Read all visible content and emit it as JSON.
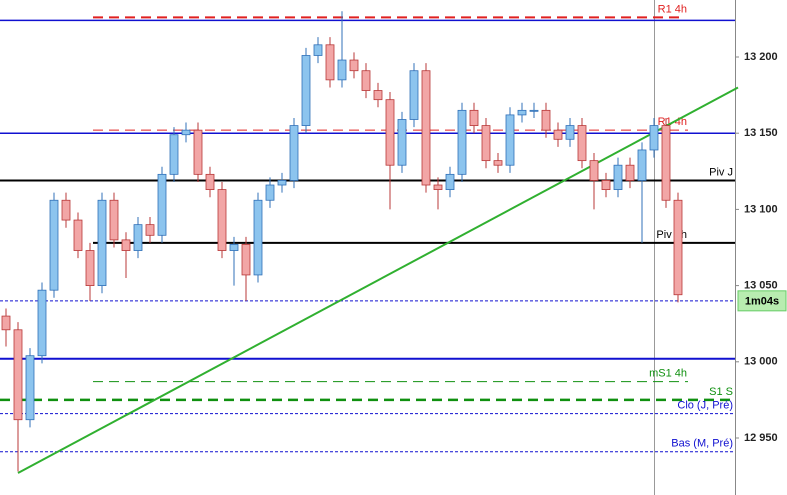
{
  "chart_data": {
    "type": "candlestick",
    "ylim": [
      12912.6,
      13237.4
    ],
    "yticks": [
      {
        "value": 12950,
        "label": "12 950"
      },
      {
        "value": 13000,
        "label": "13 000"
      },
      {
        "value": 13050,
        "label": "13 050"
      },
      {
        "value": 13100,
        "label": "13 100"
      },
      {
        "value": 13150,
        "label": "13 150"
      },
      {
        "value": 13200,
        "label": "13 200"
      }
    ],
    "up_color": "#8cc4ee",
    "down_color": "#f2a6a6",
    "open": [
      13030,
      13021,
      12962,
      13004,
      13047,
      13106,
      13093,
      13073,
      13050,
      13106,
      13080,
      13073,
      13090,
      13083,
      13123,
      13149,
      13152,
      13123,
      13113,
      13073,
      13077,
      13057,
      13106,
      13116,
      13119,
      13155,
      13201,
      13208,
      13185,
      13198,
      13191,
      13178,
      13172,
      13129,
      13159,
      13191,
      13116,
      13113,
      13123,
      13165,
      13155,
      13132,
      13129,
      13162,
      13165,
      13165,
      13152,
      13146,
      13155,
      13132,
      13119,
      13113,
      13129,
      13119,
      13139,
      13155,
      13106
    ],
    "high": [
      13035,
      13026,
      13009,
      13052,
      13111,
      13111,
      13098,
      13078,
      13111,
      13111,
      13085,
      13095,
      13095,
      13128,
      13154,
      13157,
      13157,
      13128,
      13118,
      13082,
      13082,
      13111,
      13121,
      13124,
      13160,
      13206,
      13213,
      13213,
      13230,
      13203,
      13196,
      13183,
      13177,
      13164,
      13196,
      13196,
      13121,
      13128,
      13170,
      13170,
      13160,
      13137,
      13167,
      13170,
      13170,
      13170,
      13157,
      13160,
      13160,
      13137,
      13124,
      13134,
      13134,
      13144,
      13160,
      13160,
      13111
    ],
    "low": [
      13010,
      12928,
      12957,
      12999,
      13042,
      13088,
      13068,
      13040,
      13045,
      13075,
      13055,
      13068,
      13078,
      13078,
      13118,
      13144,
      13118,
      13108,
      13068,
      13050,
      13040,
      13052,
      13101,
      13111,
      13114,
      13150,
      13196,
      13180,
      13180,
      13186,
      13173,
      13167,
      13100,
      13124,
      13154,
      13111,
      13100,
      13108,
      13118,
      13150,
      13127,
      13124,
      13124,
      13157,
      13160,
      13147,
      13141,
      13141,
      13127,
      13100,
      13108,
      13108,
      13114,
      13078,
      13134,
      13101,
      13039
    ],
    "close": [
      13021,
      12962,
      13004,
      13047,
      13106,
      13093,
      13073,
      13050,
      13106,
      13080,
      13073,
      13090,
      13083,
      13123,
      13149,
      13152,
      13123,
      13113,
      13073,
      13077,
      13057,
      13106,
      13116,
      13119,
      13155,
      13201,
      13208,
      13185,
      13198,
      13191,
      13178,
      13172,
      13129,
      13159,
      13191,
      13116,
      13113,
      13123,
      13165,
      13155,
      13132,
      13129,
      13162,
      13165,
      13165,
      13152,
      13146,
      13155,
      13132,
      13119,
      13113,
      13129,
      13119,
      13139,
      13155,
      13106,
      13044
    ],
    "levels": [
      {
        "name": "R1 4h",
        "value": 13226,
        "color": "#e02020",
        "style": "dashed",
        "width": 2
      },
      {
        "value": 13224,
        "color": "#1010d0",
        "style": "solid",
        "width": 1.5
      },
      {
        "name": "R1 4h",
        "value": 13152,
        "color": "#e02020",
        "style": "dashed",
        "width": 1
      },
      {
        "value": 13150,
        "color": "#1010d0",
        "style": "solid",
        "width": 1.5
      },
      {
        "name": "Piv J",
        "value": 13119,
        "color": "#000000",
        "style": "solid",
        "width": 2
      },
      {
        "name": "Piv 4h",
        "value": 13078,
        "color": "#000000",
        "style": "solid",
        "width": 2
      },
      {
        "value": 13040,
        "color": "#1010d0",
        "style": "dotted",
        "width": 1
      },
      {
        "value": 13002,
        "color": "#1010d0",
        "style": "solid",
        "width": 2
      },
      {
        "name": "mS1 4h",
        "value": 12987,
        "color": "#109010",
        "style": "dashed",
        "width": 1
      },
      {
        "name": "S1 S",
        "value": 12975,
        "color": "#109010",
        "style": "dashed",
        "width": 2.5
      },
      {
        "name": "Clo (J, Pré)",
        "value": 12966,
        "color": "#1010d0",
        "style": "dotted",
        "width": 1
      },
      {
        "name": "Bas (M, Pré)",
        "value": 12941,
        "color": "#1010d0",
        "style": "dotted",
        "width": 1
      }
    ],
    "trendline": {
      "x": [
        1,
        61
      ],
      "values": [
        12927,
        13180
      ],
      "color": "#30b030"
    },
    "vline": 54,
    "countdown": {
      "label": "1m04s",
      "value": 13040
    }
  }
}
